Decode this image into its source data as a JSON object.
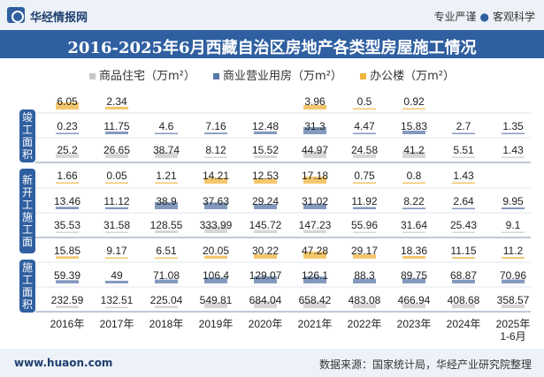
{
  "header": {
    "brand": "华经情报网",
    "slogan_left": "专业严谨",
    "slogan_dot": "●",
    "slogan_right": "客观科学"
  },
  "colors": {
    "residential": "#c8c8c8",
    "commercial": "#5a78a8",
    "office": "#f0b43c",
    "brand_blue": "#2f5fa0"
  },
  "footer": {
    "website": "www.huaon.com",
    "source": "数据来源：国家统计局，华经产业研究院整理"
  },
  "sections": [
    {
      "label": "竣工面积",
      "chars": [
        "竣",
        "工",
        "面",
        "积"
      ]
    },
    {
      "label": "新开工施工面",
      "chars": [
        "新",
        "开",
        "工",
        "施",
        "工",
        "面"
      ]
    },
    {
      "label": "施工面积",
      "chars": [
        "施",
        "工",
        "面",
        "积"
      ]
    }
  ],
  "chart_data": {
    "type": "table",
    "title": "2016-2025年6月西藏自治区房地产各类型房屋施工情况",
    "legend": [
      "商品住宅（万m²）",
      "商业营业用房（万m²）",
      "办公楼（万m²）"
    ],
    "categories": [
      "2016年",
      "2017年",
      "2018年",
      "2019年",
      "2020年",
      "2021年",
      "2022年",
      "2023年",
      "2024年",
      "2025年\n1-6月"
    ],
    "rows": [
      {
        "series": "办公楼",
        "group": "竣工面积",
        "values": [
          "6.05",
          "2.34",
          "",
          "",
          "",
          "3.96",
          "0.5",
          "0.92",
          "",
          ""
        ]
      },
      {
        "series": "商业营业用房",
        "group": "竣工面积",
        "values": [
          "0.23",
          "11.75",
          "4.6",
          "7.16",
          "12.48",
          "31.3",
          "4.47",
          "15.83",
          "2.7",
          "1.35"
        ]
      },
      {
        "series": "商品住宅",
        "group": "竣工面积",
        "values": [
          "25.2",
          "26.65",
          "38.74",
          "8.12",
          "15.52",
          "44.97",
          "24.58",
          "41.2",
          "5.51",
          "1.43"
        ]
      },
      {
        "series": "办公楼",
        "group": "新开工施工面积",
        "values": [
          "1.66",
          "0.05",
          "1.21",
          "14.21",
          "12.53",
          "17.18",
          "0.75",
          "0.8",
          "1.43",
          ""
        ]
      },
      {
        "series": "商业营业用房",
        "group": "新开工施工面积",
        "values": [
          "13.46",
          "11.12",
          "38.9",
          "37.63",
          "29.24",
          "31.02",
          "11.92",
          "8.22",
          "2.64",
          "9.95"
        ]
      },
      {
        "series": "商品住宅",
        "group": "新开工施工面积",
        "values": [
          "35.53",
          "31.58",
          "128.55",
          "333.99",
          "145.72",
          "147.23",
          "55.96",
          "31.64",
          "25.43",
          "9.1"
        ]
      },
      {
        "series": "办公楼",
        "group": "施工面积",
        "values": [
          "15.85",
          "9.17",
          "6.51",
          "20.05",
          "30.22",
          "47.28",
          "29.17",
          "18.36",
          "11.15",
          "11.2"
        ]
      },
      {
        "series": "商业营业用房",
        "group": "施工面积",
        "values": [
          "59.39",
          "49",
          "71.08",
          "106.4",
          "129.07",
          "126.1",
          "88.3",
          "89.75",
          "68.87",
          "70.96"
        ]
      },
      {
        "series": "商品住宅",
        "group": "施工面积",
        "values": [
          "232.59",
          "132.51",
          "225.04",
          "549.81",
          "684.04",
          "658.42",
          "483.08",
          "466.94",
          "408.68",
          "358.57"
        ]
      }
    ]
  }
}
